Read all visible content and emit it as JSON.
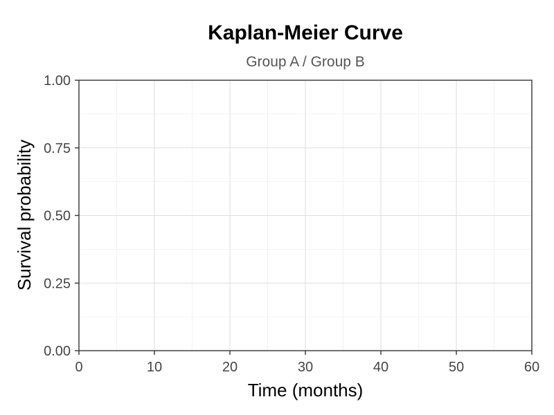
{
  "chart_data": {
    "type": "line",
    "title": "Kaplan-Meier Curve",
    "subtitle": "Group A / Group B",
    "xlabel": "Time (months)",
    "ylabel": "Survival probability",
    "xlim": [
      0,
      60
    ],
    "ylim": [
      0,
      1
    ],
    "x_ticks": [
      0,
      10,
      20,
      30,
      40,
      50,
      60
    ],
    "x_tick_labels": [
      "0",
      "10",
      "20",
      "30",
      "40",
      "50",
      "60"
    ],
    "y_ticks": [
      0,
      0.25,
      0.5,
      0.75,
      1
    ],
    "y_tick_labels": [
      "0.00",
      "0.25",
      "0.50",
      "0.75",
      "1.00"
    ],
    "x_minor_ticks": [
      5,
      15,
      25,
      35,
      45,
      55
    ],
    "y_minor_ticks": [
      0.125,
      0.375,
      0.625,
      0.875
    ],
    "grid": true,
    "series": []
  },
  "colors": {
    "major_grid": "#dedede",
    "minor_grid": "#efefef",
    "axis": "#333333",
    "title": "#000000",
    "subtitle": "#555555",
    "tick_label": "#444444"
  }
}
